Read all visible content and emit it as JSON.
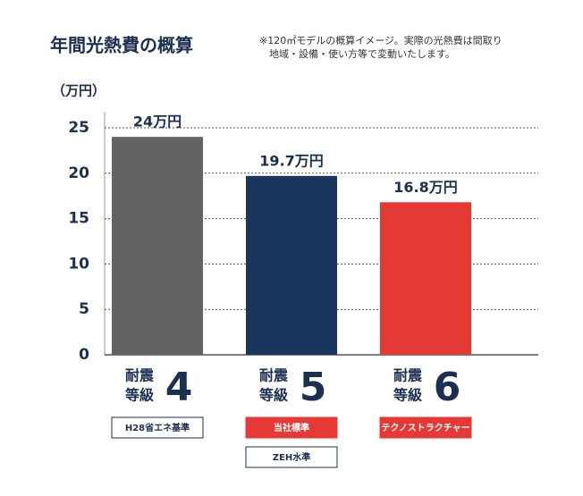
{
  "chart_data": {
    "type": "bar",
    "title": "年間光熱費の概算",
    "note": [
      "※120㎡モデルの概算イメージ。実際の光熱費は間取り",
      "地域・設備・使い方等で変動いたします。"
    ],
    "y_label": "（万円）",
    "category_prefix": [
      "耐震",
      "等級"
    ],
    "categories": [
      "4",
      "5",
      "6"
    ],
    "values": [
      24,
      19.7,
      16.8
    ],
    "value_labels": [
      "24万円",
      "19.7万円",
      "16.8万円"
    ],
    "colors": [
      "#636363",
      "#1b365d",
      "#e53935"
    ],
    "badges": [
      [
        {
          "text": "H28省エネ基準",
          "filled": false
        }
      ],
      [
        {
          "text": "当社標準",
          "filled": true
        },
        {
          "text": "ZEH水準",
          "filled": false
        }
      ],
      [
        {
          "text": "テクノストラクチャー",
          "filled": true
        }
      ]
    ],
    "ylim": [
      0,
      25
    ],
    "yticks": [
      0,
      5,
      10,
      15,
      20,
      25
    ],
    "grid": true
  }
}
